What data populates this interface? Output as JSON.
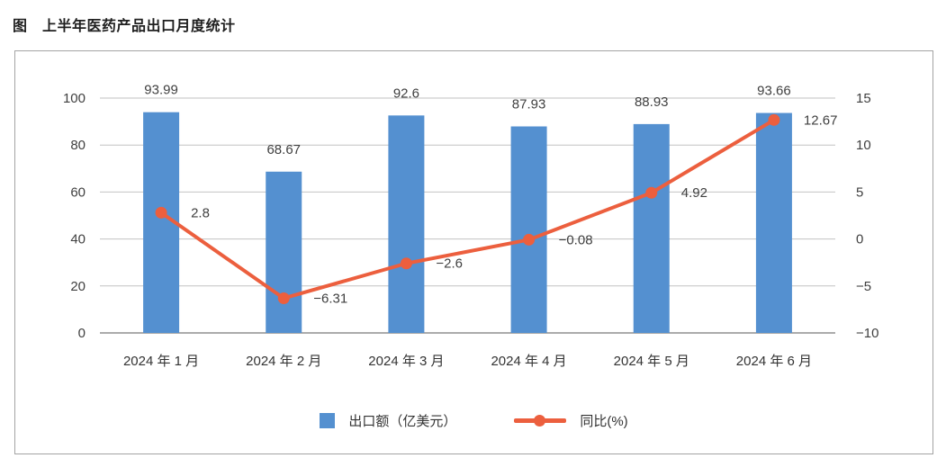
{
  "title": "图　上半年医药产品出口月度统计",
  "colors": {
    "bar": "#5490D0",
    "line": "#EC5F3E",
    "grid": "#c2c2c2",
    "axis": "#ababab",
    "label_text": "#404040",
    "tick_text": "#3f3f3f",
    "category_text": "#333333",
    "frame_border": "#a3a3a3"
  },
  "chart_data": {
    "type": "bar",
    "subtype": "combo-bar-line",
    "title": "图　上半年医药产品出口月度统计",
    "categories": [
      "2024 年 1 月",
      "2024 年 2 月",
      "2024 年 3 月",
      "2024 年 4 月",
      "2024 年 5 月",
      "2024 年 6 月"
    ],
    "series": [
      {
        "name": "出口额（亿美元）",
        "type": "bar",
        "axis": "left",
        "values": [
          93.99,
          68.67,
          92.6,
          87.93,
          88.93,
          93.66
        ],
        "labels": [
          "93.99",
          "68.67",
          "92.6",
          "87.93",
          "88.93",
          "93.66"
        ]
      },
      {
        "name": "同比(%)",
        "type": "line",
        "axis": "right",
        "values": [
          2.8,
          -6.31,
          -2.6,
          -0.08,
          4.92,
          12.67
        ],
        "labels": [
          "2.8",
          "−6.31",
          "−2.6",
          "−0.08",
          "4.92",
          "12.67"
        ]
      }
    ],
    "left_axis": {
      "min": 0,
      "max": 100,
      "tick_labels_top_down": [
        "100",
        "80",
        "60",
        "40",
        "20",
        "0"
      ]
    },
    "right_axis": {
      "min": -10,
      "max": 15,
      "tick_labels_top_down": [
        "15",
        "10",
        "5",
        "0",
        "−5",
        "−10"
      ]
    },
    "grid": "horizontal",
    "legend_position": "bottom",
    "data_labels": "shown"
  }
}
